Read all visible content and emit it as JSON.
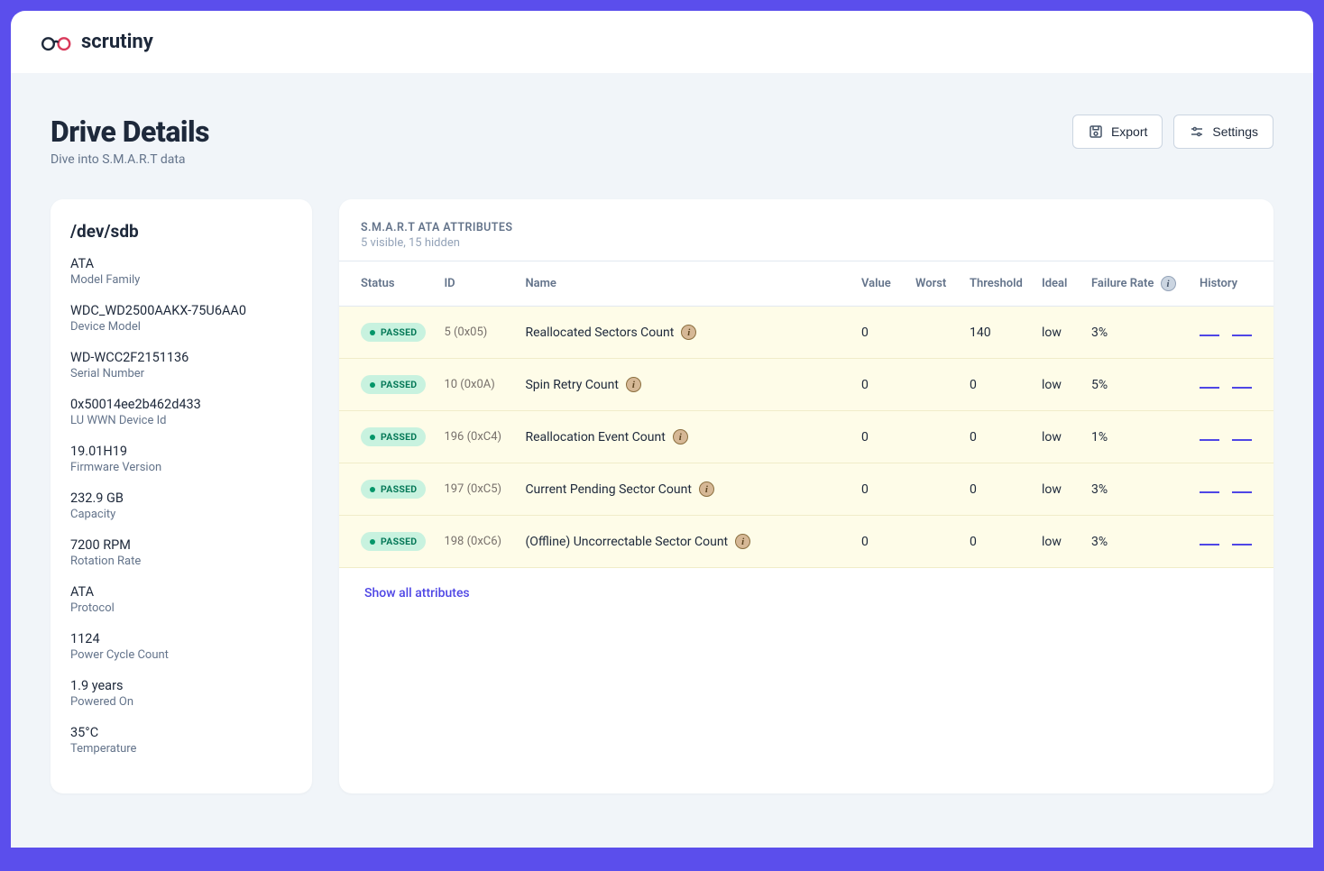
{
  "app": {
    "name": "scrutiny"
  },
  "header": {
    "title": "Drive Details",
    "subtitle": "Dive into S.M.A.R.T data",
    "export_label": "Export",
    "settings_label": "Settings"
  },
  "device": {
    "path": "/dev/sdb",
    "fields": [
      {
        "value": "ATA",
        "label": "Model Family"
      },
      {
        "value": "WDC_WD2500AAKX-75U6AA0",
        "label": "Device Model"
      },
      {
        "value": "WD-WCC2F2151136",
        "label": "Serial Number"
      },
      {
        "value": "0x50014ee2b462d433",
        "label": "LU WWN Device Id"
      },
      {
        "value": "19.01H19",
        "label": "Firmware Version"
      },
      {
        "value": "232.9 GB",
        "label": "Capacity"
      },
      {
        "value": "7200 RPM",
        "label": "Rotation Rate"
      },
      {
        "value": "ATA",
        "label": "Protocol"
      },
      {
        "value": "1124",
        "label": "Power Cycle Count"
      },
      {
        "value": "1.9 years",
        "label": "Powered On"
      },
      {
        "value": "35°C",
        "label": "Temperature"
      }
    ]
  },
  "attributes": {
    "title": "S.M.A.R.T ATA ATTRIBUTES",
    "subtitle": "5 visible, 15 hidden",
    "columns": {
      "status": "Status",
      "id": "ID",
      "name": "Name",
      "value": "Value",
      "worst": "Worst",
      "threshold": "Threshold",
      "ideal": "Ideal",
      "failure_rate": "Failure Rate",
      "history": "History"
    },
    "rows": [
      {
        "status": "PASSED",
        "id": "5 (0x05)",
        "name": "Reallocated Sectors Count",
        "value": "0",
        "worst": "",
        "threshold": "140",
        "ideal": "low",
        "failure_rate": "3%"
      },
      {
        "status": "PASSED",
        "id": "10 (0x0A)",
        "name": "Spin Retry Count",
        "value": "0",
        "worst": "",
        "threshold": "0",
        "ideal": "low",
        "failure_rate": "5%"
      },
      {
        "status": "PASSED",
        "id": "196 (0xC4)",
        "name": "Reallocation Event Count",
        "value": "0",
        "worst": "",
        "threshold": "0",
        "ideal": "low",
        "failure_rate": "1%"
      },
      {
        "status": "PASSED",
        "id": "197 (0xC5)",
        "name": "Current Pending Sector Count",
        "value": "0",
        "worst": "",
        "threshold": "0",
        "ideal": "low",
        "failure_rate": "3%"
      },
      {
        "status": "PASSED",
        "id": "198 (0xC6)",
        "name": "(Offline) Uncorrectable Sector Count",
        "value": "0",
        "worst": "",
        "threshold": "0",
        "ideal": "low",
        "failure_rate": "3%"
      }
    ],
    "show_all": "Show all attributes"
  },
  "colors": {
    "brand": "#5b4eec",
    "page_bg": "#f1f5f9",
    "card_bg": "#ffffff",
    "row_bg": "#fefce8",
    "badge_bg": "#c8f2df",
    "badge_text": "#047857",
    "link": "#4f46e5",
    "text_muted": "#64748b",
    "spark_color": "#4f46e5"
  }
}
